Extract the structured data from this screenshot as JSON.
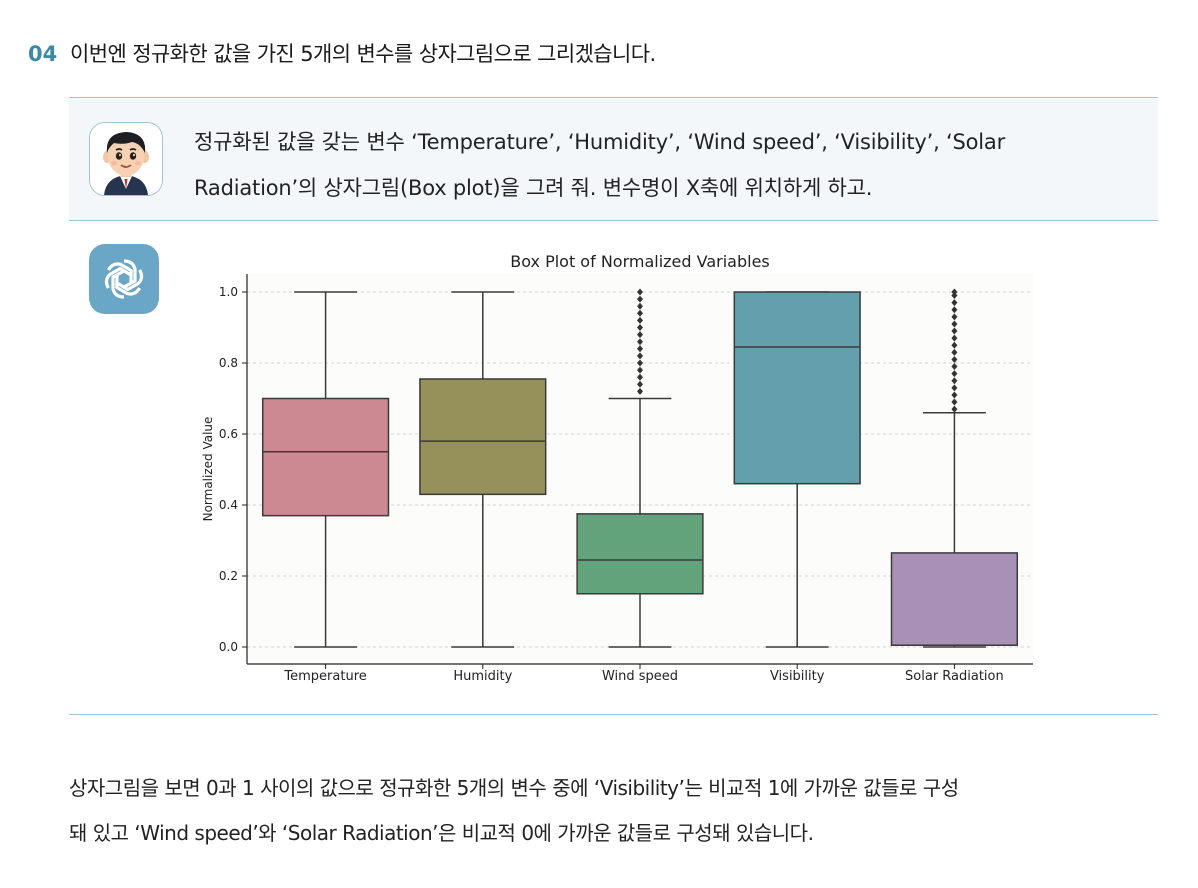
{
  "step": {
    "number": "04",
    "text": "이번엔 정규화한 값을 가진 5개의 변수를 상자그림으로 그리겠습니다."
  },
  "prompt": {
    "line1": "정규화된 값을 갖는 변수 ‘Temperature’, ‘Humidity’, ‘Wind speed’, ‘Visibility’, ‘Solar",
    "line2": "Radiation’의 상자그림(Box plot)을 그려 줘. 변수명이 X축에 위치하게 하고."
  },
  "summary": {
    "line1": "상자그림을 보면 0과 1 사이의 값으로 정규화한 5개의 변수 중에 ‘Visibility’는 비교적 1에 가까운 값들로 구성",
    "line2": "돼 있고 ‘Wind speed’와 ‘Solar Radiation’은 비교적 0에 가까운 값들로 구성돼 있습니다."
  },
  "colors": {
    "accent": "#3b8aa3",
    "rule": "#9cc3d6",
    "prompt_bg": "#f3f7f9",
    "logo_bg": "#6aa7c6"
  },
  "icons": {
    "user_avatar": "cartoon-boy-avatar",
    "assistant_logo": "chatgpt-logo"
  },
  "chart_data": {
    "type": "box",
    "title": "Box Plot of Normalized Variables",
    "xlabel": "",
    "ylabel": "Normalized Value",
    "ylim": [
      0,
      1.05
    ],
    "yticks": [
      "0.0",
      "0.2",
      "0.4",
      "0.6",
      "0.8",
      "1.0"
    ],
    "grid": true,
    "categories": [
      "Temperature",
      "Humidity",
      "Wind speed",
      "Visibility",
      "Solar Radiation"
    ],
    "boxes": [
      {
        "name": "Temperature",
        "whisker_low": 0.0,
        "q1": 0.37,
        "median": 0.55,
        "q3": 0.7,
        "whisker_high": 1.0,
        "color": "#cd8991",
        "outliers": []
      },
      {
        "name": "Humidity",
        "whisker_low": 0.0,
        "q1": 0.43,
        "median": 0.58,
        "q3": 0.755,
        "whisker_high": 1.0,
        "color": "#96905a",
        "outliers": []
      },
      {
        "name": "Wind speed",
        "whisker_low": 0.0,
        "q1": 0.15,
        "median": 0.245,
        "q3": 0.375,
        "whisker_high": 0.7,
        "color": "#62a37c",
        "outliers": [
          0.72,
          0.74,
          0.76,
          0.78,
          0.8,
          0.82,
          0.84,
          0.86,
          0.88,
          0.9,
          0.92,
          0.94,
          0.96,
          0.98,
          1.0
        ]
      },
      {
        "name": "Visibility",
        "whisker_low": 0.0,
        "q1": 0.46,
        "median": 0.845,
        "q3": 1.0,
        "whisker_high": 1.0,
        "color": "#63a0ad",
        "outliers": []
      },
      {
        "name": "Solar Radiation",
        "whisker_low": 0.0,
        "q1": 0.005,
        "median": 0.005,
        "q3": 0.265,
        "whisker_high": 0.66,
        "color": "#a890b7",
        "outliers": [
          0.67,
          0.69,
          0.71,
          0.73,
          0.75,
          0.77,
          0.79,
          0.81,
          0.83,
          0.85,
          0.87,
          0.89,
          0.91,
          0.93,
          0.95,
          0.97,
          0.99,
          1.0
        ]
      }
    ]
  }
}
